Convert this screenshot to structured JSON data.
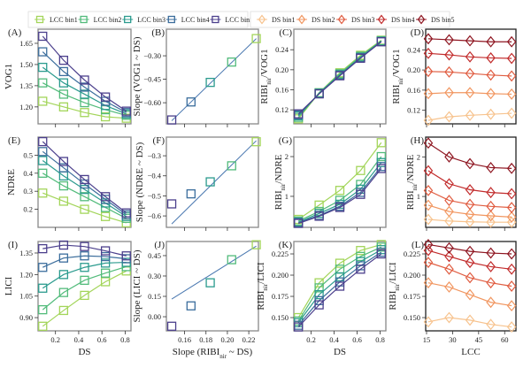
{
  "legend": {
    "lcc": [
      {
        "label": "LCC bin1",
        "color": "#a3d55a"
      },
      {
        "label": "LCC bin2",
        "color": "#52bb7b"
      },
      {
        "label": "LCC bin3",
        "color": "#2b9b8e"
      },
      {
        "label": "LCC bin4",
        "color": "#3b6d9c"
      },
      {
        "label": "LCC bin5",
        "color": "#4b3f8c"
      }
    ],
    "ds": [
      {
        "label": "DS bin1",
        "color": "#f7c38e"
      },
      {
        "label": "DS bin2",
        "color": "#f19660"
      },
      {
        "label": "DS bin3",
        "color": "#e05c40"
      },
      {
        "label": "DS bin4",
        "color": "#c22c2c"
      },
      {
        "label": "DS bin5",
        "color": "#8e1520"
      }
    ],
    "placement": "top"
  },
  "chart_data": [
    {
      "panel": "(A)",
      "type": "line",
      "marker": "square",
      "group": "lcc",
      "ylabel": "VOG1",
      "xlabel": "",
      "x": [
        0.09,
        0.27,
        0.45,
        0.63,
        0.81
      ],
      "xlim": [
        0.05,
        0.85
      ],
      "ylim": [
        1.08,
        1.75
      ],
      "xticks": [
        0.2,
        0.4,
        0.6,
        0.8
      ],
      "yticks": [
        1.2,
        1.35,
        1.5,
        1.65
      ],
      "ydec": 2,
      "show_xticklabels": false,
      "series": [
        [
          1.24,
          1.2,
          1.16,
          1.13,
          1.12
        ],
        [
          1.37,
          1.29,
          1.23,
          1.18,
          1.14
        ],
        [
          1.48,
          1.37,
          1.29,
          1.21,
          1.15
        ],
        [
          1.59,
          1.45,
          1.34,
          1.24,
          1.16
        ],
        [
          1.7,
          1.53,
          1.39,
          1.27,
          1.17
        ]
      ]
    },
    {
      "panel": "(B)",
      "type": "scatter",
      "marker": "square",
      "group": "lcc",
      "ylabel": "Slope (VOG1 ~ DS)",
      "xlabel": "",
      "xlim": [
        0.143,
        0.229
      ],
      "ylim": [
        -0.735,
        -0.13
      ],
      "xticks": [
        0.16,
        0.18,
        0.2,
        0.22
      ],
      "yticks": [
        -0.6,
        -0.45,
        -0.3
      ],
      "ydec": 2,
      "show_xticklabels": false,
      "x": [
        0.227,
        0.204,
        0.184,
        0.166,
        0.148
      ],
      "y": [
        -0.19,
        -0.34,
        -0.47,
        -0.595,
        -0.71
      ],
      "fit_line": {
        "x": [
          0.148,
          0.227
        ],
        "y": [
          -0.715,
          -0.19
        ],
        "color": "#4a78b0"
      }
    },
    {
      "panel": "(C)",
      "type": "line",
      "marker": "square",
      "group": "lcc",
      "ylabel": "RIBI",
      "ylabel_sub": "nir",
      "ylabel_rest": "/VOG1",
      "xlabel": "",
      "x": [
        0.09,
        0.27,
        0.45,
        0.63,
        0.81
      ],
      "xlim": [
        0.05,
        0.85
      ],
      "ylim": [
        0.092,
        0.281
      ],
      "xticks": [
        0.2,
        0.4,
        0.6,
        0.8
      ],
      "yticks": [
        0.12,
        0.16,
        0.2,
        0.24
      ],
      "ydec": 2,
      "show_xticklabels": false,
      "series": [
        [
          0.102,
          0.154,
          0.194,
          0.229,
          0.259
        ],
        [
          0.105,
          0.154,
          0.192,
          0.227,
          0.258
        ],
        [
          0.108,
          0.153,
          0.19,
          0.225,
          0.257
        ],
        [
          0.11,
          0.152,
          0.189,
          0.224,
          0.256
        ],
        [
          0.112,
          0.152,
          0.188,
          0.223,
          0.256
        ]
      ]
    },
    {
      "panel": "(D)",
      "type": "line",
      "marker": "diamond",
      "group": "ds",
      "ylabel": "RIBI",
      "ylabel_sub": "nir",
      "ylabel_rest": "/VOG1",
      "xlabel": "",
      "x": [
        16,
        28,
        40,
        52,
        64
      ],
      "xlim": [
        14.5,
        66.5
      ],
      "ylim": [
        0.093,
        0.281
      ],
      "xticks": [
        15,
        30,
        45,
        60
      ],
      "yticks": [
        0.12,
        0.16,
        0.2,
        0.24
      ],
      "ydec": 2,
      "show_xticklabels": false,
      "series": [
        [
          0.1,
          0.107,
          0.11,
          0.112,
          0.114
        ],
        [
          0.153,
          0.155,
          0.155,
          0.153,
          0.152
        ],
        [
          0.197,
          0.196,
          0.193,
          0.19,
          0.188
        ],
        [
          0.233,
          0.23,
          0.226,
          0.224,
          0.223
        ],
        [
          0.262,
          0.26,
          0.258,
          0.256,
          0.256
        ]
      ]
    },
    {
      "panel": "(E)",
      "type": "line",
      "marker": "square",
      "group": "lcc",
      "ylabel": "NDRE",
      "xlabel": "",
      "x": [
        0.09,
        0.27,
        0.45,
        0.63,
        0.81
      ],
      "xlim": [
        0.05,
        0.85
      ],
      "ylim": [
        0.1,
        0.6
      ],
      "xticks": [
        0.2,
        0.4,
        0.6,
        0.8
      ],
      "yticks": [
        0.2,
        0.3,
        0.4,
        0.5
      ],
      "ydec": 1,
      "show_xticklabels": false,
      "series": [
        [
          0.29,
          0.245,
          0.2,
          0.16,
          0.125
        ],
        [
          0.4,
          0.33,
          0.27,
          0.21,
          0.15
        ],
        [
          0.47,
          0.385,
          0.31,
          0.235,
          0.16
        ],
        [
          0.52,
          0.43,
          0.34,
          0.255,
          0.17
        ],
        [
          0.575,
          0.465,
          0.365,
          0.27,
          0.18
        ]
      ]
    },
    {
      "panel": "(F)",
      "type": "scatter",
      "marker": "square",
      "group": "lcc",
      "ylabel": "Slope (NDRE ~ DS)",
      "xlabel": "",
      "xlim": [
        0.143,
        0.229
      ],
      "ylim": [
        -0.657,
        -0.207
      ],
      "xticks": [
        0.16,
        0.18,
        0.2,
        0.22
      ],
      "yticks": [
        -0.6,
        -0.5,
        -0.4,
        -0.3
      ],
      "ydec": 1,
      "show_xticklabels": false,
      "x": [
        0.227,
        0.204,
        0.184,
        0.166,
        0.148
      ],
      "y": [
        -0.23,
        -0.35,
        -0.43,
        -0.49,
        -0.54
      ],
      "fit_line": {
        "x": [
          0.148,
          0.227
        ],
        "y": [
          -0.64,
          -0.225
        ],
        "color": "#4a78b0"
      }
    },
    {
      "panel": "(G)",
      "type": "line",
      "marker": "square",
      "group": "lcc",
      "ylabel": "RIBI",
      "ylabel_sub": "nir",
      "ylabel_rest": "/NDRE",
      "xlabel": "",
      "x": [
        0.09,
        0.27,
        0.45,
        0.63,
        0.81
      ],
      "xlim": [
        0.05,
        0.85
      ],
      "ylim": [
        0.22,
        2.49
      ],
      "xticks": [
        0.2,
        0.4,
        0.6,
        0.8
      ],
      "yticks": [
        1,
        2
      ],
      "ydec": 0,
      "show_xticklabels": false,
      "series": [
        [
          0.42,
          0.78,
          1.15,
          1.65,
          2.35
        ],
        [
          0.38,
          0.62,
          0.9,
          1.3,
          2.0
        ],
        [
          0.35,
          0.57,
          0.8,
          1.18,
          1.85
        ],
        [
          0.34,
          0.52,
          0.75,
          1.1,
          1.75
        ],
        [
          0.32,
          0.5,
          0.72,
          1.05,
          1.7
        ]
      ]
    },
    {
      "panel": "(H)",
      "type": "line",
      "marker": "diamond",
      "group": "ds",
      "ylabel": "RIBI",
      "ylabel_sub": "nir",
      "ylabel_rest": "/NDRE",
      "xlabel": "",
      "x": [
        16,
        28,
        40,
        52,
        64
      ],
      "xlim": [
        14.5,
        66.5
      ],
      "ylim": [
        0.22,
        2.5
      ],
      "xticks": [
        15,
        30,
        45,
        60
      ],
      "yticks": [
        1,
        2
      ],
      "ydec": 0,
      "show_xticklabels": false,
      "series": [
        [
          0.42,
          0.38,
          0.36,
          0.35,
          0.35
        ],
        [
          0.78,
          0.62,
          0.55,
          0.51,
          0.48
        ],
        [
          1.15,
          0.9,
          0.8,
          0.75,
          0.72
        ],
        [
          1.65,
          1.32,
          1.17,
          1.1,
          1.07
        ],
        [
          2.35,
          2.0,
          1.83,
          1.73,
          1.71
        ]
      ]
    },
    {
      "panel": "(I)",
      "type": "line",
      "marker": "square",
      "group": "lcc",
      "ylabel": "LICI",
      "xlabel": "DS",
      "x": [
        0.09,
        0.27,
        0.45,
        0.63,
        0.81
      ],
      "xlim": [
        0.05,
        0.85
      ],
      "ylim": [
        0.808,
        1.43
      ],
      "xticks": [
        0.2,
        0.4,
        0.6,
        0.8
      ],
      "yticks": [
        0.9,
        1.05,
        1.2,
        1.35
      ],
      "ydec": 2,
      "xdec": 1,
      "show_xticklabels": true,
      "series": [
        [
          0.84,
          0.95,
          1.055,
          1.15,
          1.225
        ],
        [
          0.955,
          1.075,
          1.16,
          1.21,
          1.255
        ],
        [
          1.105,
          1.2,
          1.25,
          1.28,
          1.285
        ],
        [
          1.25,
          1.315,
          1.33,
          1.325,
          1.31
        ],
        [
          1.38,
          1.405,
          1.395,
          1.365,
          1.33
        ]
      ]
    },
    {
      "panel": "(J)",
      "type": "scatter",
      "marker": "square",
      "group": "lcc",
      "ylabel": "Slope (LICI ~ DS)",
      "xlabel": "Slope (RIBI",
      "xlabel_sub": "nir",
      "xlabel_rest": " ~ DS)",
      "xlim": [
        0.143,
        0.229
      ],
      "ylim": [
        -0.104,
        0.554
      ],
      "xticks": [
        0.16,
        0.18,
        0.2,
        0.22
      ],
      "yticks": [
        0.0,
        0.15,
        0.3,
        0.45
      ],
      "ydec": 2,
      "xdec": 2,
      "show_xticklabels": true,
      "x": [
        0.227,
        0.204,
        0.184,
        0.166,
        0.148
      ],
      "y": [
        0.53,
        0.42,
        0.25,
        0.08,
        -0.07
      ],
      "fit_line": {
        "x": [
          0.148,
          0.227
        ],
        "y": [
          0.13,
          0.52
        ],
        "color": "#4a78b0"
      }
    },
    {
      "panel": "(K)",
      "type": "line",
      "marker": "square",
      "group": "lcc",
      "ylabel": "RIBI",
      "ylabel_sub": "nir",
      "ylabel_rest": "/LICI",
      "xlabel": "DS",
      "x": [
        0.09,
        0.27,
        0.45,
        0.63,
        0.81
      ],
      "xlim": [
        0.05,
        0.85
      ],
      "ylim": [
        0.1344,
        0.2396
      ],
      "xticks": [
        0.2,
        0.4,
        0.6,
        0.8
      ],
      "yticks": [
        0.15,
        0.175,
        0.2,
        0.225
      ],
      "ydec": 3,
      "xdec": 1,
      "show_xticklabels": true,
      "series": [
        [
          0.15,
          0.191,
          0.214,
          0.229,
          0.236
        ],
        [
          0.146,
          0.185,
          0.207,
          0.222,
          0.233
        ],
        [
          0.144,
          0.177,
          0.198,
          0.216,
          0.23
        ],
        [
          0.141,
          0.17,
          0.192,
          0.211,
          0.227
        ],
        [
          0.139,
          0.165,
          0.187,
          0.207,
          0.225
        ]
      ]
    },
    {
      "panel": "(L)",
      "type": "line",
      "marker": "diamond",
      "group": "ds",
      "ylabel": "RIBI",
      "ylabel_sub": "nir",
      "ylabel_rest": "/LICI",
      "xlabel": "LCC",
      "x": [
        16,
        28,
        40,
        52,
        64
      ],
      "xlim": [
        14.5,
        66.5
      ],
      "ylim": [
        0.1344,
        0.2396
      ],
      "xticks": [
        15,
        30,
        45,
        60
      ],
      "yticks": [
        0.15,
        0.175,
        0.2,
        0.225
      ],
      "ydec": 3,
      "xdec": 0,
      "show_xticklabels": true,
      "series": [
        [
          0.145,
          0.15,
          0.147,
          0.142,
          0.139
        ],
        [
          0.191,
          0.186,
          0.177,
          0.168,
          0.164
        ],
        [
          0.215,
          0.207,
          0.197,
          0.191,
          0.187
        ],
        [
          0.229,
          0.222,
          0.215,
          0.21,
          0.207
        ],
        [
          0.236,
          0.232,
          0.228,
          0.226,
          0.225
        ]
      ]
    }
  ]
}
